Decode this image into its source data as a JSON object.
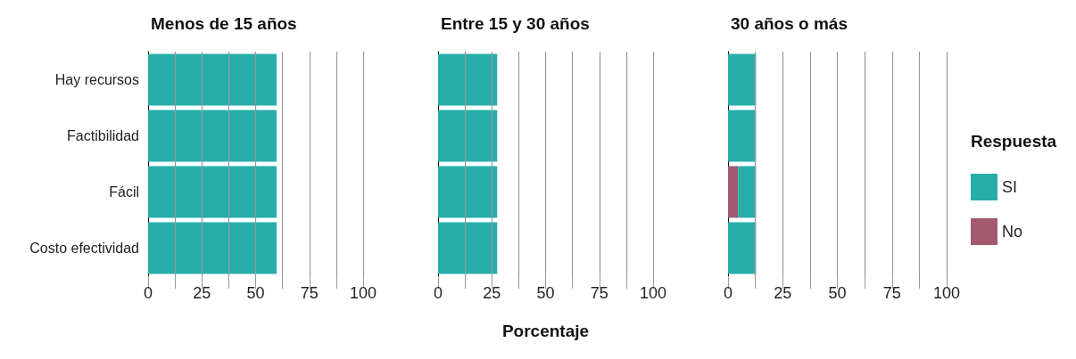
{
  "chart_data": [
    {
      "type": "bar",
      "title": "Menos de 15 años",
      "orientation": "horizontal",
      "stacked": true,
      "categories": [
        "Hay recursos",
        "Factibilidad",
        "Fácil",
        "Costo efectividad"
      ],
      "series": [
        {
          "color": "#27aeaa",
          "values": [
            59.8,
            59.8,
            59.8,
            59.8
          ]
        }
      ],
      "xlim": [
        0,
        100
      ],
      "xticks": [
        0,
        {
          "value": 12.5,
          "label": null
        },
        25,
        {
          "value": 37.5,
          "label": null
        },
        50,
        {
          "value": 62.5,
          "label": null
        },
        75,
        {
          "value": 87.5,
          "label": null
        },
        100
      ],
      "grid": "x",
      "legend": false
    },
    {
      "type": "bar",
      "title": "Entre 15 y 30 años",
      "xlabel": "Porcentaje",
      "orientation": "horizontal",
      "stacked": true,
      "categories": [
        null,
        null,
        null,
        null
      ],
      "series": [
        {
          "color": "#27aeaa",
          "values": [
            27.5,
            27.5,
            27.5,
            27.5
          ]
        }
      ],
      "xlim": [
        0,
        100
      ],
      "xticks": [
        0,
        {
          "value": 12.5,
          "label": null
        },
        25,
        {
          "value": 37.5,
          "label": null
        },
        50,
        {
          "value": 62.5,
          "label": null
        },
        75,
        {
          "value": 87.5,
          "label": null
        },
        100
      ],
      "grid": "x",
      "tick_labels": "x",
      "legend": false
    },
    {
      "type": "bar",
      "title": "30 años o más",
      "legend_title": "Respuesta",
      "orientation": "horizontal",
      "stacked": true,
      "categories": [
        null,
        null,
        null,
        null
      ],
      "series": [
        {
          "name": "No",
          "color": "#a35a6e",
          "values": [
            null,
            null,
            4.6,
            null
          ]
        },
        {
          "name": "SI",
          "color": "#27aeaa",
          "values": [
            12.8,
            12.8,
            8.2,
            12.8
          ]
        }
      ],
      "xlim": [
        0,
        100
      ],
      "xticks": [
        0,
        {
          "value": 12.5,
          "label": null
        },
        25,
        {
          "value": 37.5,
          "label": null
        },
        50,
        {
          "value": 62.5,
          "label": null
        },
        75,
        {
          "value": 87.5,
          "label": null
        },
        100
      ],
      "grid": "x",
      "tick_labels": "x",
      "legend": "right"
    }
  ]
}
